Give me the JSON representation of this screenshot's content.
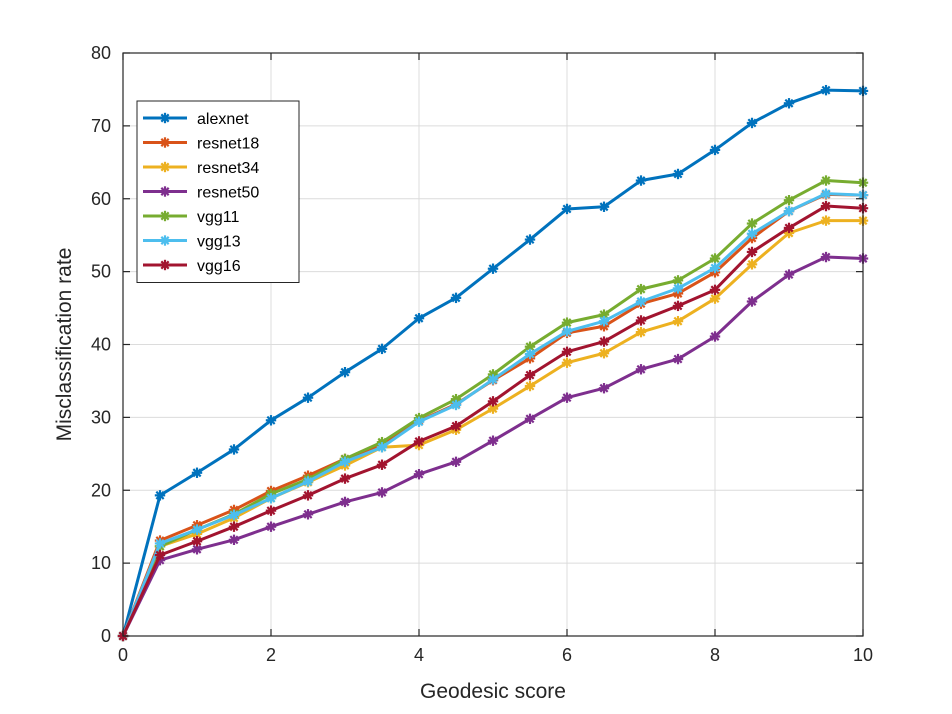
{
  "chart_data": {
    "type": "line",
    "title": "",
    "xlabel": "Geodesic score",
    "ylabel": "Misclassification rate",
    "xlim": [
      0,
      10
    ],
    "ylim": [
      0,
      80
    ],
    "xticks": [
      0,
      2,
      4,
      6,
      8,
      10
    ],
    "yticks": [
      0,
      10,
      20,
      30,
      40,
      50,
      60,
      70,
      80
    ],
    "grid": true,
    "legend_position": "top-left",
    "x": [
      0,
      0.5,
      1,
      1.5,
      2,
      2.5,
      3,
      3.5,
      4,
      4.5,
      5,
      5.5,
      6,
      6.5,
      7,
      7.5,
      8,
      8.5,
      9,
      9.5,
      10
    ],
    "series": [
      {
        "name": "alexnet",
        "color": "#0072bd",
        "values": [
          0,
          19.3,
          22.4,
          25.6,
          29.6,
          32.7,
          36.2,
          39.4,
          43.6,
          46.4,
          50.4,
          54.4,
          58.6,
          58.9,
          62.5,
          63.4,
          66.7,
          70.4,
          73.1,
          74.9,
          74.8
        ]
      },
      {
        "name": "resnet18",
        "color": "#d95319",
        "values": [
          0,
          13.1,
          15.2,
          17.3,
          19.9,
          22.0,
          24.3,
          26.3,
          29.5,
          31.8,
          35.1,
          38.1,
          41.6,
          42.5,
          45.6,
          47.0,
          49.9,
          54.6,
          58.3,
          60.6,
          60.5
        ]
      },
      {
        "name": "resnet34",
        "color": "#edb120",
        "values": [
          0,
          12.3,
          14.0,
          16.2,
          18.9,
          21.1,
          23.4,
          25.9,
          26.2,
          28.3,
          31.2,
          34.3,
          37.5,
          38.8,
          41.7,
          43.2,
          46.3,
          51.0,
          55.3,
          57.0,
          57.0
        ]
      },
      {
        "name": "resnet50",
        "color": "#7e2f8e",
        "values": [
          0,
          10.4,
          11.9,
          13.2,
          15.0,
          16.7,
          18.4,
          19.7,
          22.2,
          23.9,
          26.8,
          29.8,
          32.7,
          34.0,
          36.6,
          38.0,
          41.1,
          45.9,
          49.6,
          52.0,
          51.8
        ]
      },
      {
        "name": "vgg11",
        "color": "#77ac30",
        "values": [
          0,
          12.3,
          14.6,
          16.7,
          19.5,
          21.5,
          24.3,
          26.6,
          29.9,
          32.5,
          35.9,
          39.7,
          43.0,
          44.1,
          47.6,
          48.8,
          51.8,
          56.6,
          59.8,
          62.5,
          62.2
        ]
      },
      {
        "name": "vgg13",
        "color": "#4dbeee",
        "values": [
          0,
          12.7,
          14.6,
          16.6,
          18.9,
          21.2,
          23.9,
          25.9,
          29.4,
          31.7,
          35.2,
          38.7,
          41.8,
          43.2,
          45.9,
          47.7,
          50.5,
          55.2,
          58.3,
          60.7,
          60.5
        ]
      },
      {
        "name": "vgg16",
        "color": "#a2142f",
        "values": [
          0,
          11.1,
          13.0,
          15.0,
          17.2,
          19.3,
          21.6,
          23.5,
          26.7,
          28.8,
          32.2,
          35.8,
          39.0,
          40.4,
          43.3,
          45.3,
          47.5,
          52.7,
          56.0,
          59.0,
          58.7
        ]
      }
    ]
  }
}
